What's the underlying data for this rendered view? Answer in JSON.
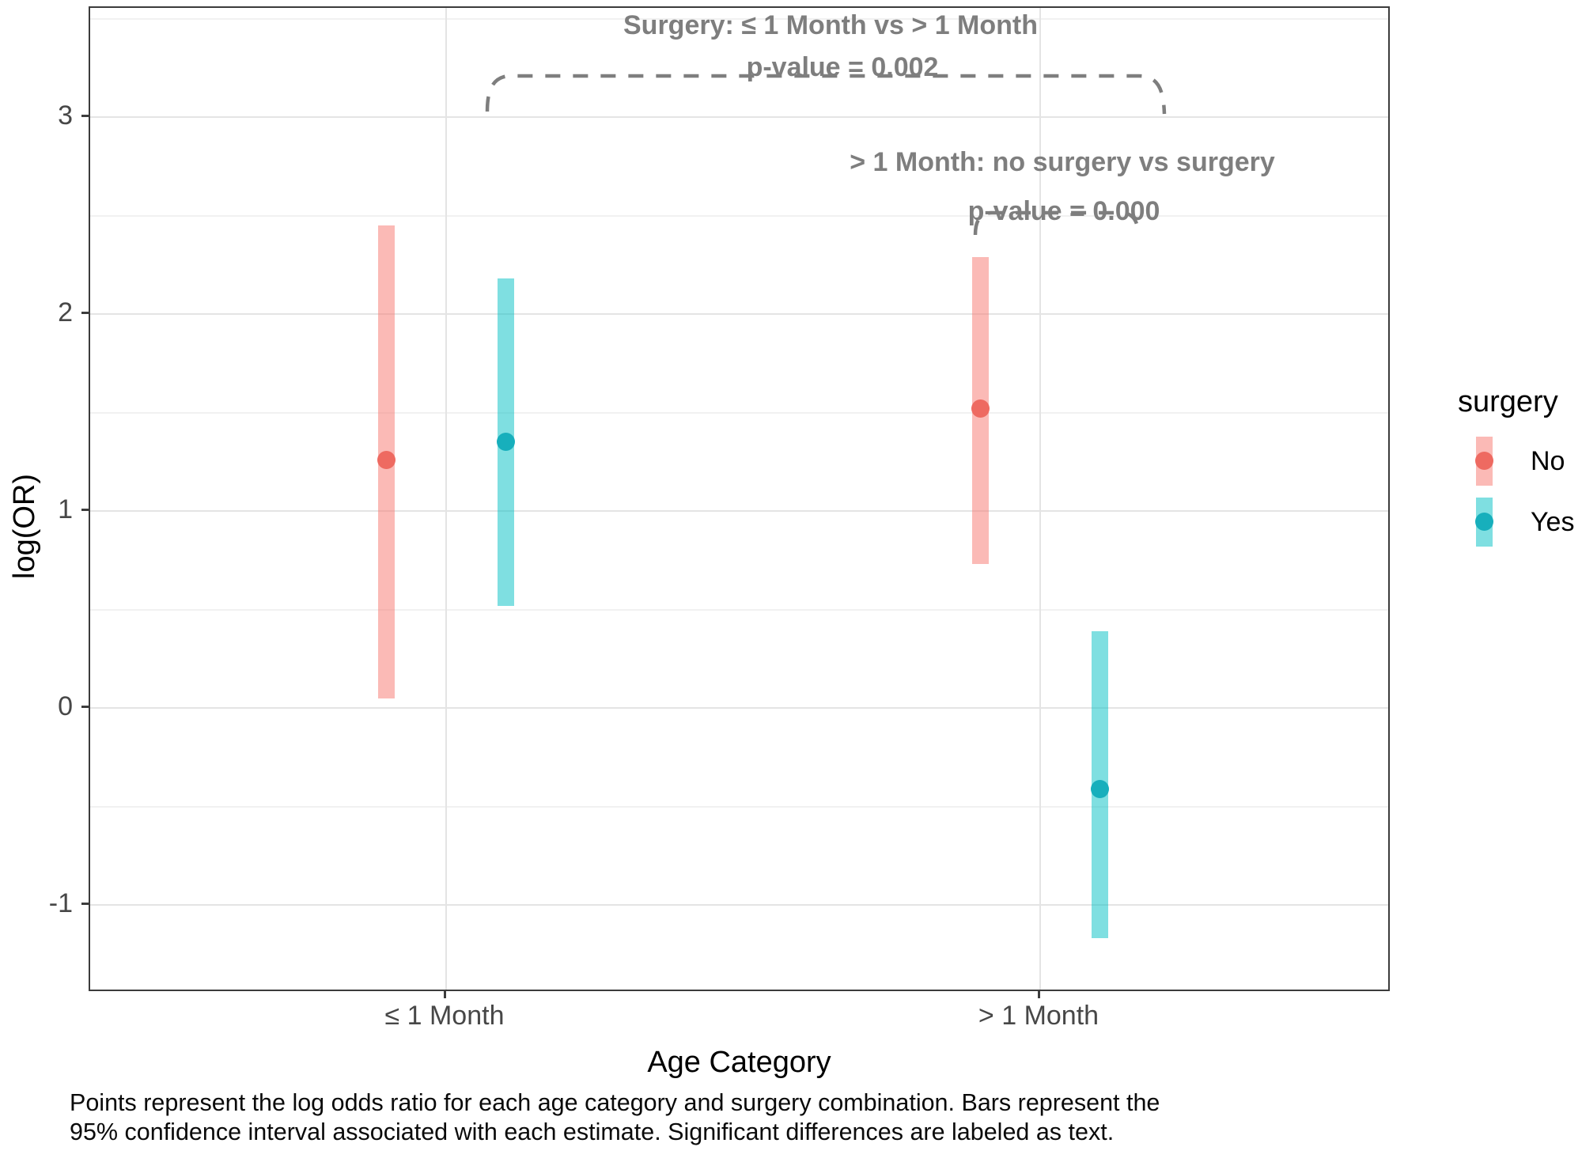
{
  "chart_data": {
    "type": "pointrange",
    "xlabel": "Age Category",
    "ylabel": "log(OR)",
    "categories": [
      "≤ 1 Month",
      "> 1 Month"
    ],
    "y_axis": {
      "tick_labels": [
        "3",
        "2",
        "1",
        "0",
        "-1"
      ],
      "tick_values": [
        3,
        2,
        1,
        0,
        -1
      ],
      "minor_values": [
        3.5,
        2.5,
        1.5,
        0.5,
        -0.5
      ],
      "range": [
        -1.45,
        3.55
      ],
      "grid": true
    },
    "legend": {
      "title": "surgery",
      "position": "right",
      "entries": [
        {
          "label": "No",
          "point_color": "#ee6a61",
          "ci_color": "rgba(248,118,109,0.5)"
        },
        {
          "label": "Yes",
          "point_color": "#17afbc",
          "ci_color": "rgba(0,191,196,0.5)"
        }
      ]
    },
    "series": [
      {
        "name": "No",
        "point_color": "#ee6a61",
        "ci_color": "rgba(248,118,109,0.5)",
        "points": [
          {
            "category": "≤ 1 Month",
            "estimate": 1.26,
            "ci_low": 0.05,
            "ci_high": 2.45
          },
          {
            "category": "> 1 Month",
            "estimate": 1.52,
            "ci_low": 0.73,
            "ci_high": 2.29
          }
        ]
      },
      {
        "name": "Yes",
        "point_color": "#17afbc",
        "ci_color": "rgba(0,191,196,0.5)",
        "points": [
          {
            "category": "≤ 1 Month",
            "estimate": 1.35,
            "ci_low": 0.52,
            "ci_high": 2.18
          },
          {
            "category": "> 1 Month",
            "estimate": -0.41,
            "ci_low": -1.17,
            "ci_high": 0.39
          }
        ]
      }
    ],
    "annotations": [
      {
        "line1": "Surgery: ≤ 1 Month vs > 1 Month",
        "line2": "p-value = 0.002",
        "color": "#7e7e7e"
      },
      {
        "line1": "> 1 Month: no surgery vs surgery",
        "line2": "p-value = 0.000",
        "color": "#7e7e7e"
      }
    ],
    "caption_line1": "Points represent the log odds ratio for each age category and surgery combination. Bars represent the",
    "caption_line2": "95% confidence interval associated with each estimate. Significant differences are labeled as text."
  }
}
